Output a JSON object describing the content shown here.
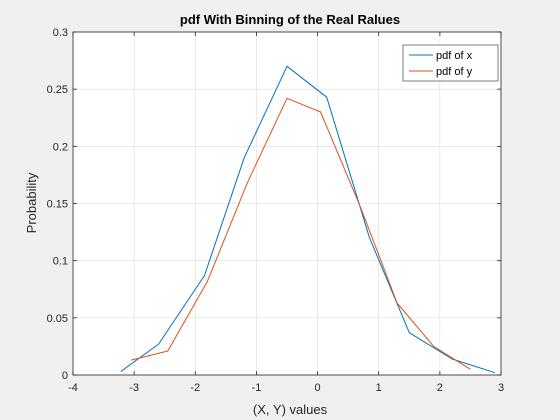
{
  "chart_data": {
    "type": "line",
    "title": "pdf With Binning of the Real Ralues",
    "xlabel": "(X, Y) values",
    "ylabel": "Probability",
    "xlim": [
      -4,
      3
    ],
    "ylim": [
      0,
      0.3
    ],
    "xticks": [
      -4,
      -3,
      -2,
      -1,
      0,
      1,
      2,
      3
    ],
    "yticks": [
      0,
      0.05,
      0.1,
      0.15,
      0.2,
      0.25,
      0.3
    ],
    "xtick_labels": [
      "-4",
      "-3",
      "-2",
      "-1",
      "0",
      "1",
      "2",
      "3"
    ],
    "ytick_labels": [
      "0",
      "0.05",
      "0.1",
      "0.15",
      "0.2",
      "0.25",
      "0.3"
    ],
    "grid": true,
    "legend_position": "top-right",
    "series": [
      {
        "name": "pdf of x",
        "color": "#0072bd",
        "x": [
          -3.22,
          -2.6,
          -1.85,
          -1.2,
          -0.5,
          0.15,
          0.85,
          1.5,
          2.2,
          2.9
        ],
        "y": [
          0.003,
          0.027,
          0.087,
          0.19,
          0.27,
          0.243,
          0.12,
          0.037,
          0.014,
          0.002
        ]
      },
      {
        "name": "pdf of y",
        "color": "#d95319",
        "x": [
          -3.05,
          -2.45,
          -1.8,
          -1.15,
          -0.5,
          0.05,
          0.7,
          1.3,
          1.9,
          2.5
        ],
        "y": [
          0.013,
          0.021,
          0.082,
          0.168,
          0.242,
          0.23,
          0.147,
          0.063,
          0.025,
          0.005
        ]
      }
    ]
  }
}
